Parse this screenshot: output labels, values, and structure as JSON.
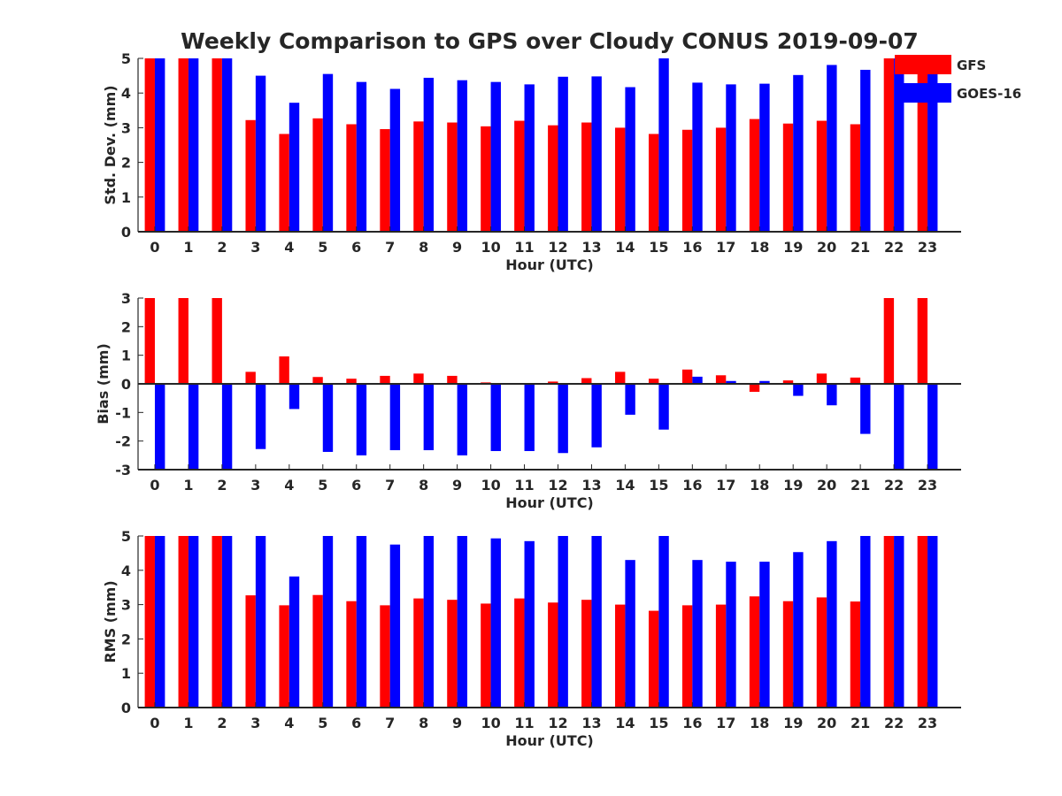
{
  "figure": {
    "title": "Weekly Comparison to GPS over Cloudy CONUS 2019-09-07"
  },
  "legend": {
    "placement": "top-right",
    "entries": [
      {
        "label": "GFS",
        "color": "#ff0000"
      },
      {
        "label": "GOES-16",
        "color": "#0000ff"
      }
    ]
  },
  "chart_data": [
    {
      "type": "bar",
      "ylabel": "Std. Dev. (mm)",
      "xlabel": "Hour (UTC)",
      "ylim": [
        0,
        5
      ],
      "yticks": [
        "0",
        "1",
        "2",
        "3",
        "4",
        "5"
      ],
      "categories": [
        "0",
        "1",
        "2",
        "3",
        "4",
        "5",
        "6",
        "7",
        "8",
        "9",
        "10",
        "11",
        "12",
        "13",
        "14",
        "15",
        "16",
        "17",
        "18",
        "19",
        "20",
        "21",
        "22",
        "23"
      ],
      "series": [
        {
          "name": "GFS",
          "color": "#ff0000",
          "values": [
            5,
            5,
            5,
            3.22,
            2.82,
            3.27,
            3.1,
            2.96,
            3.18,
            3.15,
            3.04,
            3.2,
            3.07,
            3.15,
            3.0,
            2.82,
            2.94,
            3.0,
            3.25,
            3.12,
            3.2,
            3.1,
            5,
            5
          ]
        },
        {
          "name": "GOES-16",
          "color": "#0000ff",
          "values": [
            5,
            5,
            5,
            4.5,
            3.72,
            4.55,
            4.32,
            4.12,
            4.44,
            4.37,
            4.32,
            4.25,
            4.47,
            4.48,
            4.17,
            5.0,
            4.3,
            4.25,
            4.27,
            4.52,
            4.81,
            4.67,
            5,
            5
          ]
        }
      ]
    },
    {
      "type": "bar",
      "ylabel": "Bias (mm)",
      "xlabel": "Hour (UTC)",
      "ylim": [
        -3,
        3
      ],
      "yticks": [
        "-3",
        "-2",
        "-1",
        "0",
        "1",
        "2",
        "3"
      ],
      "categories": [
        "0",
        "1",
        "2",
        "3",
        "4",
        "5",
        "6",
        "7",
        "8",
        "9",
        "10",
        "11",
        "12",
        "13",
        "14",
        "15",
        "16",
        "17",
        "18",
        "19",
        "20",
        "21",
        "22",
        "23"
      ],
      "series": [
        {
          "name": "GFS",
          "color": "#ff0000",
          "values": [
            3,
            3,
            3,
            0.42,
            0.96,
            0.24,
            0.18,
            0.28,
            0.36,
            0.28,
            0.05,
            0.02,
            0.08,
            0.2,
            0.42,
            0.18,
            0.5,
            0.3,
            -0.28,
            0.12,
            0.36,
            0.22,
            3,
            3
          ]
        },
        {
          "name": "GOES-16",
          "color": "#0000ff",
          "values": [
            -3,
            -3,
            -3,
            -2.28,
            -0.88,
            -2.38,
            -2.5,
            -2.32,
            -2.32,
            -2.5,
            -2.35,
            -2.35,
            -2.42,
            -2.22,
            -1.08,
            -1.6,
            0.25,
            0.1,
            0.1,
            -0.42,
            -0.75,
            -1.75,
            -3,
            -3
          ]
        }
      ]
    },
    {
      "type": "bar",
      "ylabel": "RMS (mm)",
      "xlabel": "Hour (UTC)",
      "ylim": [
        0,
        5
      ],
      "yticks": [
        "0",
        "1",
        "2",
        "3",
        "4",
        "5"
      ],
      "categories": [
        "0",
        "1",
        "2",
        "3",
        "4",
        "5",
        "6",
        "7",
        "8",
        "9",
        "10",
        "11",
        "12",
        "13",
        "14",
        "15",
        "16",
        "17",
        "18",
        "19",
        "20",
        "21",
        "22",
        "23"
      ],
      "series": [
        {
          "name": "GFS",
          "color": "#ff0000",
          "values": [
            5,
            5,
            5,
            3.27,
            2.98,
            3.28,
            3.1,
            2.98,
            3.18,
            3.14,
            3.03,
            3.18,
            3.06,
            3.14,
            3.0,
            2.82,
            2.98,
            3.0,
            3.24,
            3.1,
            3.21,
            3.09,
            5,
            5
          ]
        },
        {
          "name": "GOES-16",
          "color": "#0000ff",
          "values": [
            5,
            5,
            5,
            5,
            3.82,
            5,
            5,
            4.75,
            5,
            5,
            4.93,
            4.85,
            5,
            5,
            4.3,
            5,
            4.3,
            4.25,
            4.25,
            4.53,
            4.85,
            5,
            5,
            5
          ]
        }
      ]
    }
  ]
}
